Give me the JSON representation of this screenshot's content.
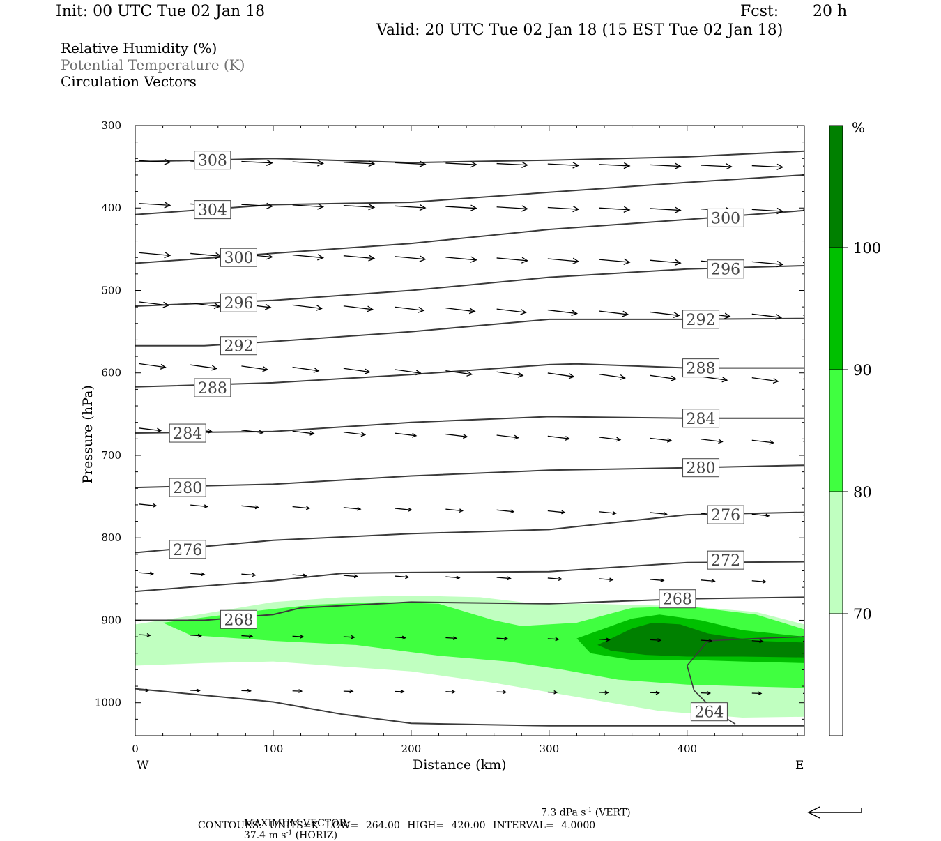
{
  "header": {
    "init": "Init: 00 UTC Tue 02 Jan 18",
    "fcst_label": "Fcst:",
    "fcst_value": "20 h",
    "valid": "Valid: 20 UTC Tue 02 Jan 18 (15 EST Tue 02 Jan 18)"
  },
  "legend": {
    "line1": "Relative Humidity (%)",
    "line2": "Potential Temperature (K)",
    "line3": "Circulation Vectors"
  },
  "footer": {
    "max_vector_prefix": "MAXIMUM VECTOR:",
    "horiz_value": "37.4 m s",
    "horiz_exp": "-1",
    "horiz_suffix": "(HORIZ)",
    "vert_value": "7.3 dPa s",
    "vert_exp": "-1",
    "vert_suffix": "(VERT)",
    "contours": "CONTOURS: UNITS=K LOW= 264.00 HIGH= 420.00 INTERVAL= 4.0000"
  },
  "colors": {
    "rh_70": "#c0ffc0",
    "rh_80": "#40ff40",
    "rh_90": "#00c000",
    "rh_100": "#008000",
    "contour": "#3a3a3a",
    "legend_gray": "#707070"
  },
  "chart_data": {
    "type": "cross-section",
    "xlabel": "Distance (km)",
    "ylabel": "Pressure (hPa)",
    "xlim": [
      0,
      485
    ],
    "ylim": [
      300,
      1040
    ],
    "y_inverted": true,
    "x_ticks": [
      "0",
      "100",
      "200",
      "300",
      "400"
    ],
    "y_ticks": [
      "300",
      "400",
      "500",
      "600",
      "700",
      "800",
      "900",
      "1000"
    ],
    "x_end_labels": {
      "left": "W",
      "right": "E"
    },
    "colorbar": {
      "unit": "%",
      "levels": [
        "70",
        "80",
        "90",
        "100"
      ]
    },
    "theta_contours": [
      {
        "label": "308",
        "label_at": [
          56,
          342
        ],
        "points": [
          [
            0,
            344
          ],
          [
            100,
            340
          ],
          [
            200,
            345
          ],
          [
            300,
            342
          ],
          [
            400,
            338
          ],
          [
            485,
            331
          ]
        ]
      },
      {
        "label": "304",
        "label_at": [
          56,
          402
        ],
        "points": [
          [
            0,
            408
          ],
          [
            100,
            396
          ],
          [
            200,
            393
          ],
          [
            300,
            381
          ],
          [
            400,
            369
          ],
          [
            485,
            360
          ]
        ]
      },
      {
        "label": "300",
        "label_at": [
          75,
          460
        ],
        "points": [
          [
            0,
            467
          ],
          [
            100,
            455
          ],
          [
            200,
            443
          ],
          [
            300,
            426
          ],
          [
            400,
            414
          ],
          [
            485,
            403
          ]
        ]
      },
      {
        "label": "300",
        "label_at": [
          428,
          412
        ],
        "points": []
      },
      {
        "label": "296",
        "label_at": [
          75,
          515
        ],
        "points": [
          [
            0,
            519
          ],
          [
            100,
            512
          ],
          [
            200,
            500
          ],
          [
            300,
            484
          ],
          [
            400,
            474
          ],
          [
            485,
            470
          ]
        ]
      },
      {
        "label": "296",
        "label_at": [
          428,
          474
        ],
        "points": []
      },
      {
        "label": "292",
        "label_at": [
          75,
          567
        ],
        "points": [
          [
            0,
            567
          ],
          [
            50,
            567
          ],
          [
            100,
            562
          ],
          [
            200,
            550
          ],
          [
            300,
            535
          ],
          [
            400,
            535
          ],
          [
            485,
            534
          ]
        ]
      },
      {
        "label": "292",
        "label_at": [
          410,
          535
        ],
        "points": []
      },
      {
        "label": "288",
        "label_at": [
          56,
          618
        ],
        "points": [
          [
            0,
            617
          ],
          [
            100,
            612
          ],
          [
            200,
            602
          ],
          [
            300,
            590
          ],
          [
            320,
            589
          ],
          [
            400,
            594
          ],
          [
            485,
            594
          ]
        ]
      },
      {
        "label": "288",
        "label_at": [
          410,
          594
        ],
        "points": []
      },
      {
        "label": "284",
        "label_at": [
          38,
          673
        ],
        "points": [
          [
            0,
            673
          ],
          [
            100,
            671
          ],
          [
            200,
            660
          ],
          [
            300,
            653
          ],
          [
            400,
            655
          ],
          [
            485,
            655
          ]
        ]
      },
      {
        "label": "284",
        "label_at": [
          410,
          655
        ],
        "points": []
      },
      {
        "label": "280",
        "label_at": [
          38,
          739
        ],
        "points": [
          [
            0,
            739
          ],
          [
            100,
            735
          ],
          [
            200,
            725
          ],
          [
            300,
            718
          ],
          [
            400,
            715
          ],
          [
            485,
            712
          ]
        ]
      },
      {
        "label": "280",
        "label_at": [
          410,
          715
        ],
        "points": []
      },
      {
        "label": "276",
        "label_at": [
          38,
          814
        ],
        "points": [
          [
            0,
            818
          ],
          [
            100,
            803
          ],
          [
            200,
            795
          ],
          [
            300,
            790
          ],
          [
            400,
            772
          ],
          [
            485,
            769
          ]
        ]
      },
      {
        "label": "276",
        "label_at": [
          428,
          772
        ],
        "points": []
      },
      {
        "label": "272",
        "label_at": [
          428,
          827
        ],
        "points": [
          [
            0,
            865
          ],
          [
            100,
            852
          ],
          [
            150,
            843
          ],
          [
            200,
            842
          ],
          [
            300,
            841
          ],
          [
            400,
            830
          ],
          [
            485,
            829
          ]
        ]
      },
      {
        "label": "268",
        "label_at": [
          75,
          899
        ],
        "points": [
          [
            0,
            900
          ],
          [
            50,
            900
          ],
          [
            100,
            893
          ],
          [
            120,
            885
          ],
          [
            200,
            878
          ],
          [
            300,
            880
          ],
          [
            400,
            874
          ],
          [
            485,
            872
          ]
        ]
      },
      {
        "label": "268",
        "label_at": [
          393,
          874
        ],
        "points": []
      },
      {
        "label": "264",
        "label_at": [
          416,
          1011
        ],
        "points": [
          [
            0,
            983
          ],
          [
            100,
            999
          ],
          [
            150,
            1014
          ],
          [
            200,
            1025
          ],
          [
            300,
            1028
          ],
          [
            485,
            1028
          ]
        ]
      }
    ],
    "rh_regions": [
      {
        "level": "70",
        "upper": [
          [
            0,
            905
          ],
          [
            50,
            892
          ],
          [
            100,
            878
          ],
          [
            150,
            872
          ],
          [
            200,
            870
          ],
          [
            250,
            872
          ],
          [
            290,
            880
          ],
          [
            330,
            880
          ],
          [
            400,
            883
          ],
          [
            450,
            890
          ],
          [
            485,
            905
          ]
        ],
        "lower": [
          [
            485,
            1017
          ],
          [
            440,
            1018
          ],
          [
            380,
            1010
          ],
          [
            320,
            993
          ],
          [
            260,
            976
          ],
          [
            200,
            962
          ],
          [
            150,
            956
          ],
          [
            100,
            950
          ],
          [
            50,
            952
          ],
          [
            0,
            955
          ]
        ]
      },
      {
        "level": "80",
        "upper": [
          [
            20,
            903
          ],
          [
            80,
            890
          ],
          [
            130,
            881
          ],
          [
            180,
            878
          ],
          [
            220,
            880
          ],
          [
            260,
            900
          ],
          [
            280,
            907
          ],
          [
            320,
            903
          ],
          [
            360,
            885
          ],
          [
            400,
            883
          ],
          [
            450,
            893
          ],
          [
            485,
            911
          ]
        ],
        "lower": [
          [
            485,
            982
          ],
          [
            440,
            980
          ],
          [
            400,
            978
          ],
          [
            350,
            972
          ],
          [
            310,
            960
          ],
          [
            270,
            950
          ],
          [
            220,
            943
          ],
          [
            160,
            930
          ],
          [
            100,
            925
          ],
          [
            40,
            918
          ]
        ]
      },
      {
        "level": "90",
        "upper": [
          [
            320,
            922
          ],
          [
            360,
            898
          ],
          [
            380,
            893
          ],
          [
            410,
            900
          ],
          [
            440,
            912
          ],
          [
            485,
            920
          ]
        ],
        "lower": [
          [
            485,
            952
          ],
          [
            440,
            950
          ],
          [
            400,
            948
          ],
          [
            360,
            948
          ],
          [
            330,
            940
          ]
        ]
      },
      {
        "level": "100",
        "upper": [
          [
            335,
            930
          ],
          [
            360,
            910
          ],
          [
            375,
            903
          ],
          [
            395,
            905
          ],
          [
            415,
            916
          ],
          [
            450,
            925
          ],
          [
            485,
            927
          ]
        ],
        "lower": [
          [
            485,
            945
          ],
          [
            440,
            944
          ],
          [
            400,
            944
          ],
          [
            370,
            942
          ],
          [
            345,
            937
          ]
        ]
      }
    ],
    "vector_rows": [
      {
        "p": 343,
        "u": 1.0,
        "v": 0.05
      },
      {
        "p": 395,
        "u": 1.0,
        "v": 0.06
      },
      {
        "p": 455,
        "u": 1.0,
        "v": 0.09
      },
      {
        "p": 515,
        "u": 0.95,
        "v": 0.12
      },
      {
        "p": 590,
        "u": 0.85,
        "v": 0.14
      },
      {
        "p": 668,
        "u": 0.7,
        "v": 0.12
      },
      {
        "p": 760,
        "u": 0.55,
        "v": 0.1
      },
      {
        "p": 843,
        "u": 0.45,
        "v": 0.08
      },
      {
        "p": 918,
        "u": 0.35,
        "v": 0.06
      },
      {
        "p": 985,
        "u": 0.3,
        "v": 0.03
      }
    ],
    "reference_vector": {
      "u": -1.0,
      "v": 0.0
    }
  }
}
